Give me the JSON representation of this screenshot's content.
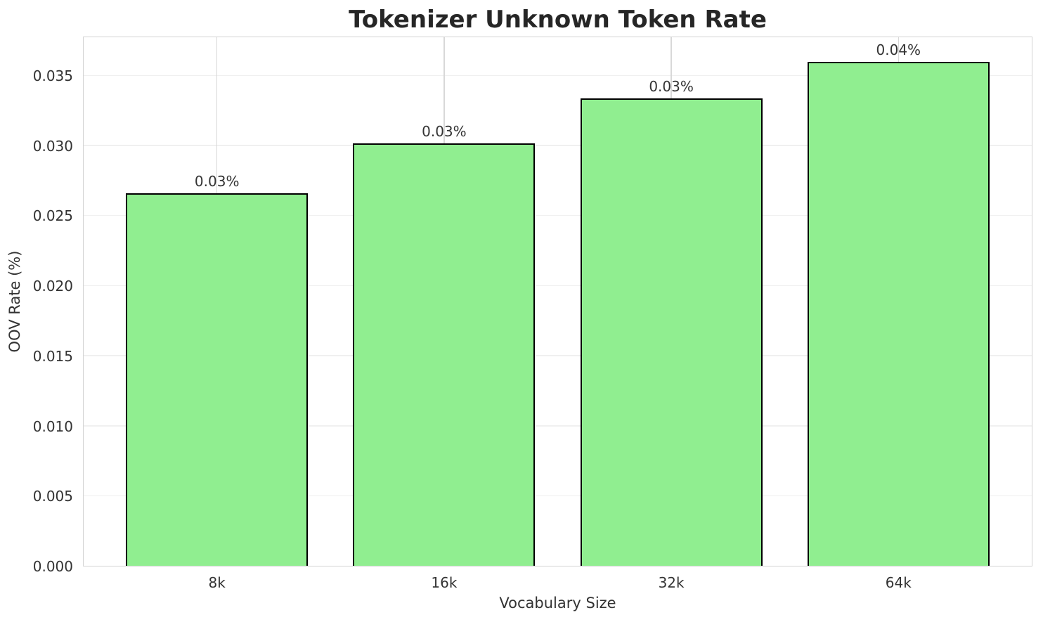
{
  "chart_data": {
    "type": "bar",
    "title": "Tokenizer Unknown Token Rate",
    "xlabel": "Vocabulary Size",
    "ylabel": "OOV Rate (%)",
    "categories": [
      "8k",
      "16k",
      "32k",
      "64k"
    ],
    "values": [
      0.0266,
      0.0302,
      0.0334,
      0.036
    ],
    "bar_labels": [
      "0.03%",
      "0.03%",
      "0.03%",
      "0.04%"
    ],
    "y_tick_values": [
      0.0,
      0.005,
      0.01,
      0.015,
      0.02,
      0.025,
      0.03,
      0.035
    ],
    "y_tick_labels": [
      "0.000",
      "0.005",
      "0.010",
      "0.015",
      "0.020",
      "0.025",
      "0.030",
      "0.035"
    ],
    "ylim": [
      0,
      0.0378
    ],
    "grid": true,
    "legend": "none",
    "colors": {
      "bar_fill": "#90EE90",
      "bar_edge": "#000000",
      "grid_horizontal": "#F0F0F0",
      "grid_vertical": "#D8D8D8",
      "spine": "#D3D3D3",
      "title_text": "#262626",
      "axis_text": "#333333",
      "background": "#FFFFFF"
    }
  }
}
